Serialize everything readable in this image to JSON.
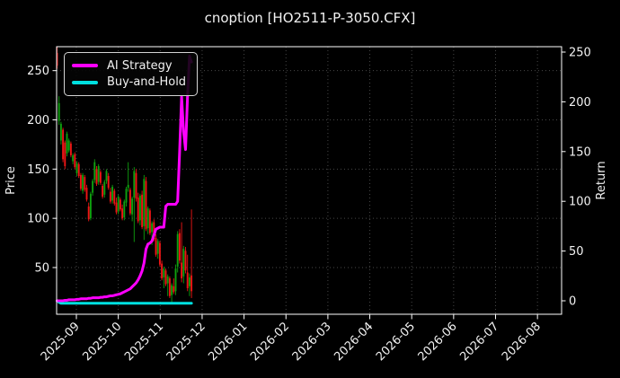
{
  "figure": {
    "title": "cnoption [HO2511-P-3050.CFX]"
  },
  "chart_data": {
    "type": "candlestick",
    "title": "cnoption [HO2511-P-3050.CFX]",
    "ylabel_left": "Price",
    "ylabel_right": "Return",
    "x_ticklabels": [
      "2025-09",
      "2025-10",
      "2025-11",
      "2025-12",
      "2026-01",
      "2026-02",
      "2026-03",
      "2026-04",
      "2026-05",
      "2026-06",
      "2026-07",
      "2026-08"
    ],
    "left_ticks": [
      50,
      100,
      150,
      200,
      250
    ],
    "right_ticks": [
      0,
      50,
      100,
      150,
      200,
      250
    ],
    "ylim_left": [
      -5,
      275
    ],
    "ylim_right": [
      -15,
      255
    ],
    "grid": true,
    "legend": {
      "position": "upper-left",
      "entries": [
        {
          "label": "AI Strategy",
          "color": "#ff00ff"
        },
        {
          "label": "Buy-and-Hold",
          "color": "#00e0e0"
        }
      ]
    },
    "colors": {
      "background": "#000000",
      "text": "#f2f2f2",
      "grid": "#474747",
      "frame": "#ffffff",
      "up": "#0fa00f",
      "down": "#ef1515",
      "ai_line": "#ff00ff",
      "bh_line": "#00e0e0"
    },
    "candles": [
      [
        "2025-08-19",
        268,
        274,
        252,
        255
      ],
      [
        "2025-08-20",
        199,
        224,
        195,
        217
      ],
      [
        "2025-08-21",
        179,
        198,
        175,
        196
      ],
      [
        "2025-08-22",
        190,
        192,
        157,
        160
      ],
      [
        "2025-08-25",
        177,
        179,
        150,
        153
      ],
      [
        "2025-08-26",
        166,
        188,
        163,
        186
      ],
      [
        "2025-08-27",
        169,
        181,
        167,
        179
      ],
      [
        "2025-08-28",
        176,
        178,
        162,
        164
      ],
      [
        "2025-08-29",
        158,
        166,
        155,
        164
      ],
      [
        "2025-09-01",
        165,
        167,
        150,
        152
      ],
      [
        "2025-09-02",
        146,
        158,
        143,
        156
      ],
      [
        "2025-09-03",
        155,
        157,
        141,
        143
      ],
      [
        "2025-09-04",
        144,
        146,
        128,
        130
      ],
      [
        "2025-09-05",
        128,
        146,
        125,
        144
      ],
      [
        "2025-09-08",
        142,
        144,
        127,
        129
      ],
      [
        "2025-09-09",
        131,
        134,
        117,
        119
      ],
      [
        "2025-09-10",
        112,
        116,
        97,
        99
      ],
      [
        "2025-09-11",
        100,
        127,
        98,
        125
      ],
      [
        "2025-09-12",
        126,
        140,
        123,
        138
      ],
      [
        "2025-09-15",
        139,
        160,
        136,
        157
      ],
      [
        "2025-09-16",
        150,
        153,
        133,
        135
      ],
      [
        "2025-09-17",
        137,
        155,
        134,
        153
      ],
      [
        "2025-09-18",
        147,
        149,
        134,
        136
      ],
      [
        "2025-09-19",
        133,
        135,
        120,
        122
      ],
      [
        "2025-09-22",
        124,
        139,
        121,
        137
      ],
      [
        "2025-09-23",
        138,
        150,
        135,
        148
      ],
      [
        "2025-09-24",
        143,
        146,
        129,
        131
      ],
      [
        "2025-09-25",
        127,
        131,
        115,
        117
      ],
      [
        "2025-09-26",
        118,
        134,
        115,
        132
      ],
      [
        "2025-09-29",
        128,
        130,
        113,
        115
      ],
      [
        "2025-09-30",
        116,
        121,
        104,
        106
      ],
      [
        "2025-10-01",
        107,
        124,
        104,
        122
      ],
      [
        "2025-10-02",
        119,
        121,
        107,
        109
      ],
      [
        "2025-10-03",
        110,
        114,
        98,
        100
      ],
      [
        "2025-10-06",
        101,
        119,
        98,
        117
      ],
      [
        "2025-10-07",
        116,
        132,
        112,
        130
      ],
      [
        "2025-10-08",
        131,
        157,
        127,
        134
      ],
      [
        "2025-10-09",
        129,
        131,
        103,
        105
      ],
      [
        "2025-10-10",
        104,
        122,
        97,
        120
      ],
      [
        "2025-10-13",
        121,
        152,
        76,
        148
      ],
      [
        "2025-10-14",
        146,
        150,
        117,
        120
      ],
      [
        "2025-10-15",
        121,
        126,
        95,
        97
      ],
      [
        "2025-10-16",
        98,
        125,
        93,
        123
      ],
      [
        "2025-10-17",
        124,
        128,
        89,
        91
      ],
      [
        "2025-10-20",
        92,
        144,
        78,
        140
      ],
      [
        "2025-10-21",
        138,
        142,
        87,
        89
      ],
      [
        "2025-10-22",
        90,
        112,
        84,
        110
      ],
      [
        "2025-10-23",
        108,
        110,
        83,
        85
      ],
      [
        "2025-10-24",
        86,
        97,
        73,
        95
      ],
      [
        "2025-10-27",
        96,
        99,
        77,
        79
      ],
      [
        "2025-10-28",
        80,
        84,
        61,
        63
      ],
      [
        "2025-10-29",
        64,
        79,
        59,
        77
      ],
      [
        "2025-10-30",
        75,
        77,
        51,
        53
      ],
      [
        "2025-10-31",
        54,
        57,
        37,
        39
      ],
      [
        "2025-11-03",
        40,
        51,
        29,
        49
      ],
      [
        "2025-11-04",
        47,
        49,
        31,
        33
      ],
      [
        "2025-11-05",
        34,
        43,
        21,
        41
      ],
      [
        "2025-11-06",
        39,
        41,
        19,
        21
      ],
      [
        "2025-11-07",
        22,
        34,
        14,
        32
      ],
      [
        "2025-11-10",
        31,
        39,
        23,
        25
      ],
      [
        "2025-11-11",
        26,
        53,
        22,
        49
      ],
      [
        "2025-11-12",
        51,
        87,
        45,
        84
      ],
      [
        "2025-11-13",
        85,
        89,
        54,
        57
      ],
      [
        "2025-11-14",
        55,
        96,
        35,
        39
      ],
      [
        "2025-11-17",
        41,
        72,
        34,
        69
      ],
      [
        "2025-11-18",
        67,
        71,
        44,
        47
      ],
      [
        "2025-11-19",
        45,
        63,
        26,
        29
      ],
      [
        "2025-11-20",
        31,
        44,
        21,
        40
      ],
      [
        "2025-11-21",
        42,
        109,
        19,
        26
      ]
    ],
    "series": [
      {
        "name": "AI Strategy",
        "axis": "right",
        "values": [
          0,
          0,
          0,
          0,
          0.5,
          0.5,
          1,
          1,
          1,
          1,
          1.5,
          1.5,
          2,
          2,
          2,
          2,
          2.5,
          2.5,
          3,
          3,
          3,
          3,
          3.5,
          3.5,
          4,
          4,
          4.5,
          5,
          5,
          5.5,
          6,
          6.5,
          7,
          8,
          9,
          10,
          11,
          12,
          14,
          16,
          18,
          21,
          25,
          30,
          38,
          52,
          57,
          58,
          60,
          66,
          72,
          73,
          74,
          74,
          74,
          95,
          97,
          97,
          97,
          97,
          97,
          100,
          150,
          205,
          170,
          152,
          205,
          246,
          240
        ]
      },
      {
        "name": "Buy-and-Hold",
        "axis": "right",
        "values": [
          0,
          -1.5,
          -2.5,
          -2.5,
          -2.5,
          -2.5,
          -2.5,
          -2.5,
          -2.5,
          -2.5,
          -2.5,
          -2.5,
          -2.5,
          -2.5,
          -2.5,
          -2.5,
          -2.5,
          -2.5,
          -2.5,
          -2.5,
          -2.5,
          -2.5,
          -2.5,
          -2.5,
          -2.5,
          -2.5,
          -2.5,
          -2.5,
          -2.5,
          -2.5,
          -2.5,
          -2.5,
          -2.5,
          -2.5,
          -2.5,
          -2.5,
          -2.5,
          -2.5,
          -2.5,
          -2.5,
          -2.5,
          -2.5,
          -2.5,
          -2.5,
          -2.5,
          -2.5,
          -2.5,
          -2.5,
          -2.5,
          -2.5,
          -2.5,
          -2.5,
          -2.5,
          -2.5,
          -2.5,
          -2.5,
          -2.5,
          -2.5,
          -2.5,
          -2.5,
          -2.5,
          -2.5,
          -2.5,
          -2.5,
          -2.5,
          -2.5,
          -2.5,
          -2.5,
          -2.5
        ]
      }
    ]
  }
}
